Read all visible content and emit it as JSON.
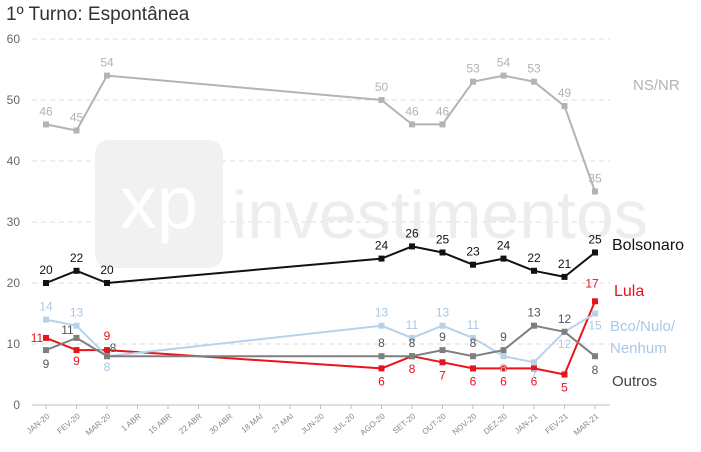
{
  "chart_data": {
    "type": "line",
    "title": "1º Turno: Espontânea",
    "x": [
      "JAN-20",
      "FEV-20",
      "MAR-20",
      "1 ABR",
      "15 ABR",
      "22 ABR",
      "30 ABR",
      "18 MAI",
      "27 MAI",
      "JUN-20",
      "JUL-20",
      "AGO-20",
      "SET-20",
      "OUT-20",
      "NOV-20",
      "DEZ-20",
      "JAN-21",
      "FEV-21",
      "MAR-21"
    ],
    "ylim": [
      0,
      60
    ],
    "yticks": [
      0,
      10,
      20,
      30,
      40,
      50,
      60
    ],
    "grid": true,
    "series": [
      {
        "name": "NS/NR",
        "color": "#b3b3b3",
        "label_color": "#b3b3b3",
        "values": [
          46,
          45,
          54,
          null,
          null,
          null,
          null,
          null,
          null,
          null,
          null,
          50,
          46,
          46,
          53,
          54,
          53,
          49,
          35
        ]
      },
      {
        "name": "Bolsonaro",
        "color": "#111111",
        "label_color": "#111111",
        "values": [
          20,
          22,
          20,
          null,
          null,
          null,
          null,
          null,
          null,
          null,
          null,
          24,
          26,
          25,
          23,
          24,
          22,
          21,
          25
        ]
      },
      {
        "name": "Lula",
        "color": "#e8141c",
        "label_color": "#e8141c",
        "values": [
          11,
          9,
          9,
          null,
          null,
          null,
          null,
          null,
          null,
          null,
          null,
          6,
          8,
          7,
          6,
          6,
          6,
          5,
          17
        ]
      },
      {
        "name": "Bco/Nulo/Nenhum",
        "color": "#b8d2ea",
        "label_color": "#a9c8e6",
        "values": [
          14,
          13,
          8,
          null,
          null,
          null,
          null,
          null,
          null,
          null,
          null,
          13,
          11,
          13,
          11,
          8,
          7,
          12,
          15
        ]
      },
      {
        "name": "Outros",
        "color": "#7f7f7f",
        "label_color": "#555555",
        "values": [
          9,
          11,
          8,
          null,
          null,
          null,
          null,
          null,
          null,
          null,
          null,
          8,
          8,
          9,
          8,
          9,
          13,
          12,
          8
        ]
      }
    ],
    "legend_placement": "right, next to line ends"
  },
  "watermark": {
    "logo_text": "xp",
    "text": "investimentos"
  },
  "legend_labels": {
    "nsnr": "NS/NR",
    "bolsonaro": "Bolsonaro",
    "lula": "Lula",
    "bco_line1": "Bco/Nulo/",
    "bco_line2": "Nenhum",
    "outros": "Outros"
  }
}
